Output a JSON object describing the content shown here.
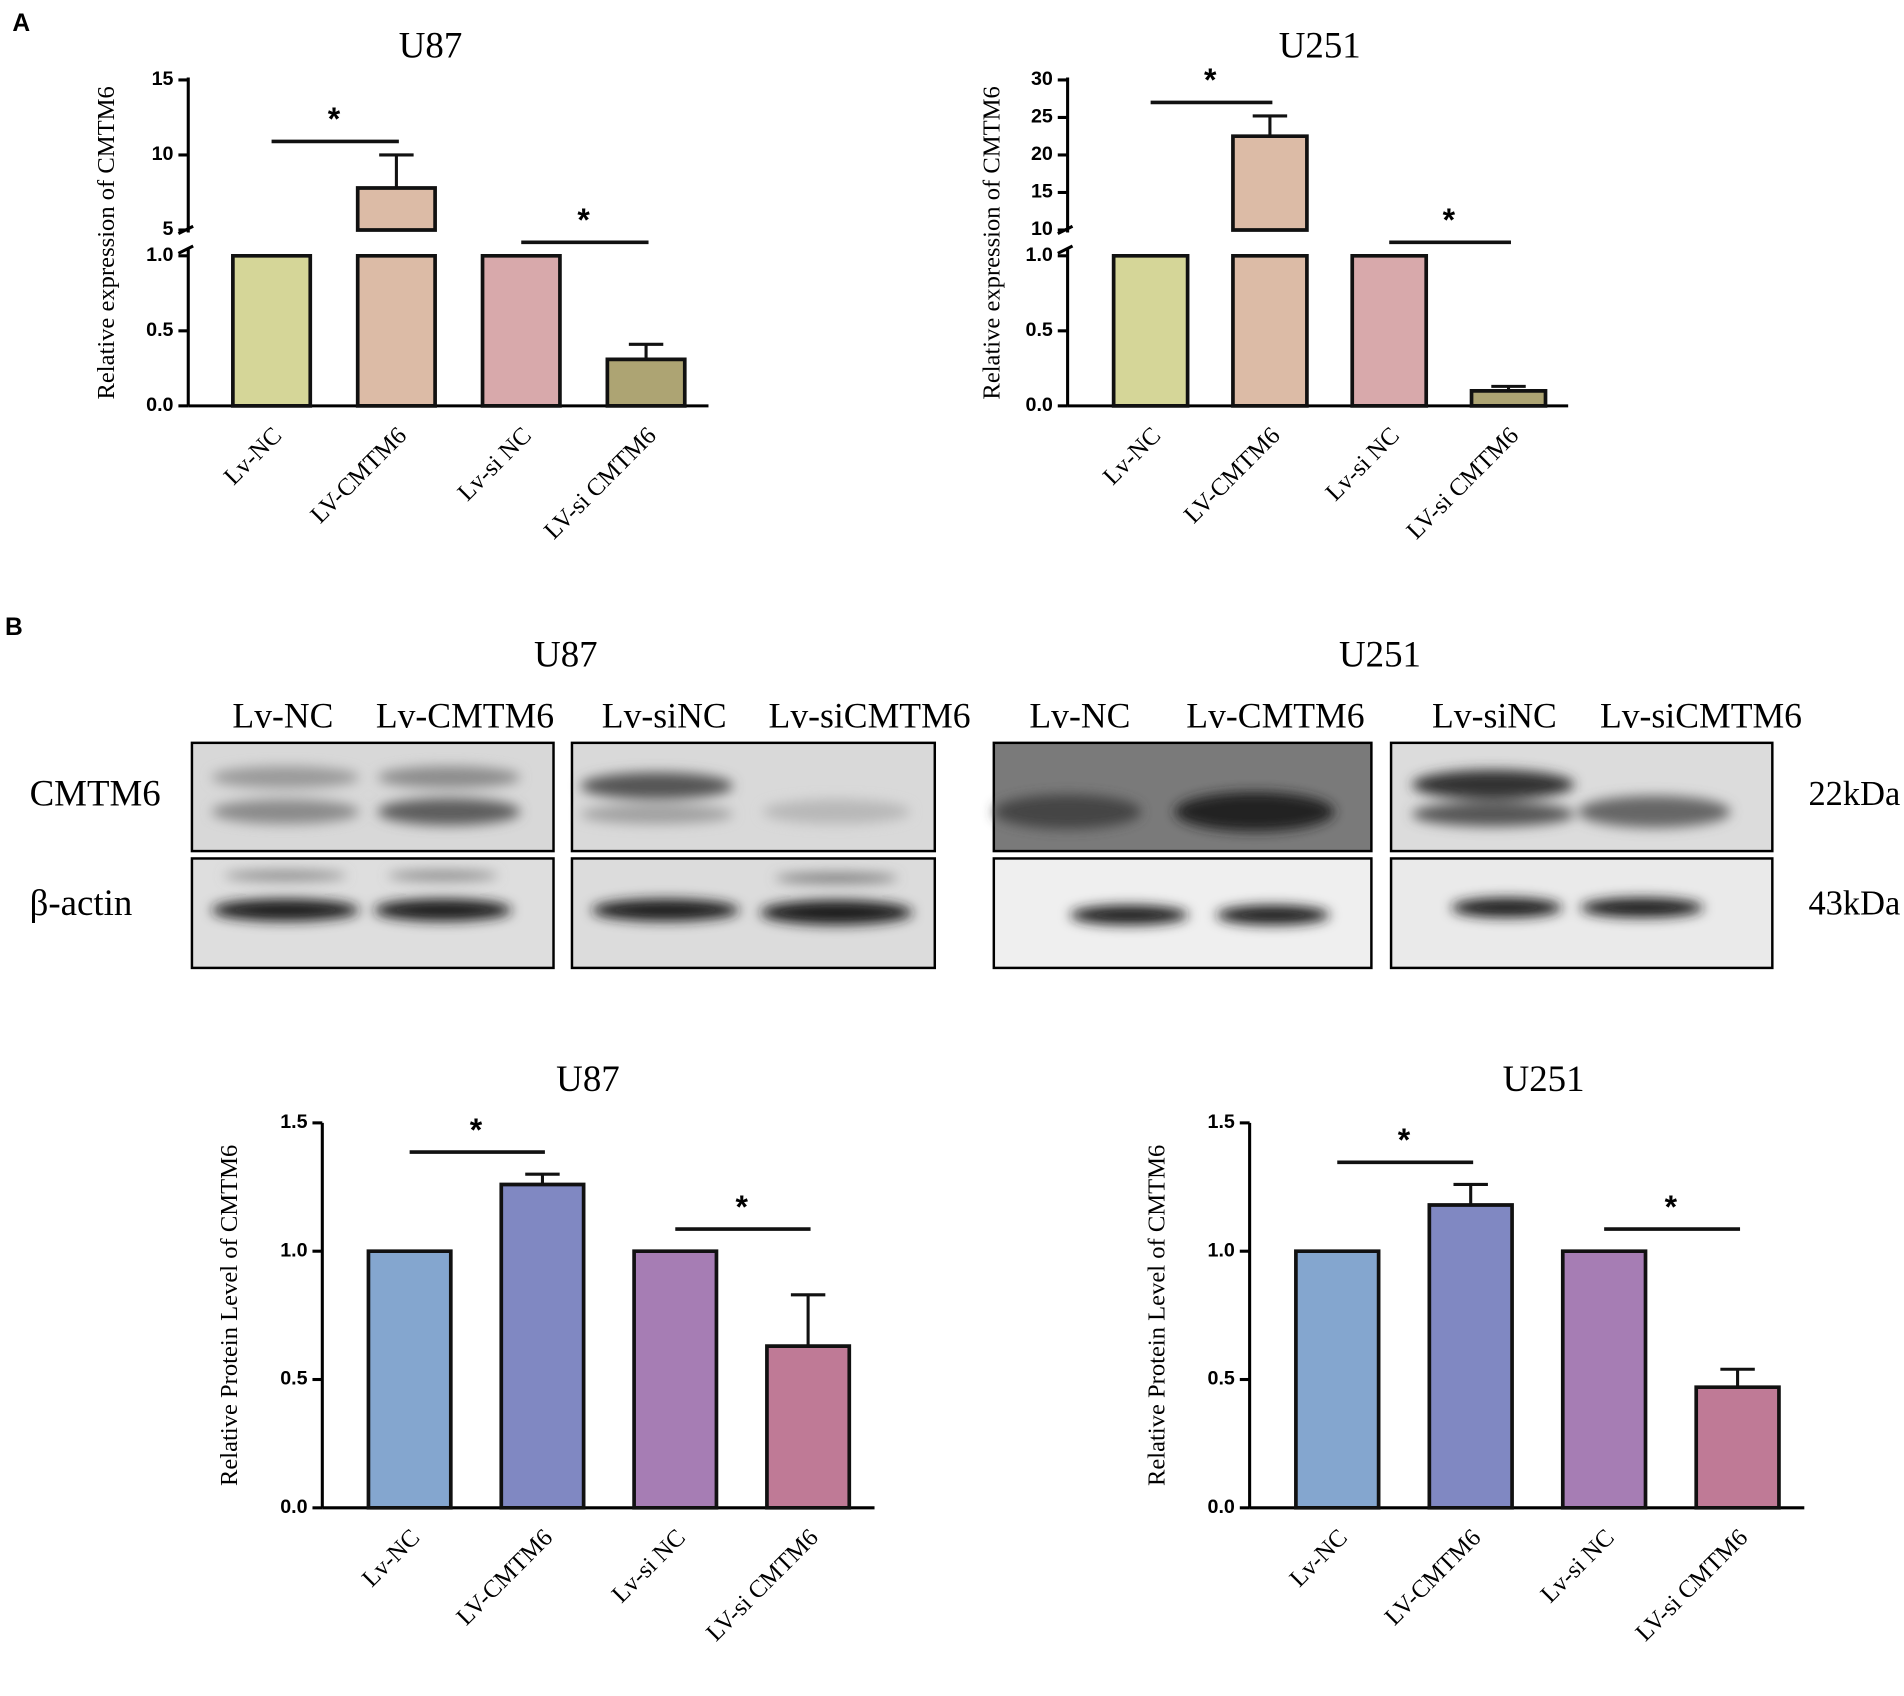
{
  "panels": [
    "A",
    "B"
  ],
  "chart_data": [
    {
      "type": "bar",
      "title": "U87",
      "y_label": "Relative expression of CMTM6",
      "categories": [
        "Lv-NC",
        "LV-CMTM6",
        "Lv-si NC",
        "LV-si CMTM6"
      ],
      "values": [
        1,
        7.8,
        1,
        0.31
      ],
      "errors": [
        null,
        2.2,
        null,
        0.1
      ],
      "colors": [
        "#d5d698",
        "#dcbba6",
        "#d8a9ab",
        "#ada473"
      ],
      "ylim": [
        0,
        15
      ],
      "axis_break": [
        1,
        5
      ],
      "yticks": [
        {
          "value": 0,
          "label": "0.0"
        },
        0.5,
        {
          "value": 1,
          "label": "1.0"
        },
        5,
        10,
        15
      ],
      "significance": [
        {
          "pair": [
            0,
            1
          ],
          "label": "*"
        },
        {
          "pair": [
            2,
            3
          ],
          "label": "*"
        }
      ]
    },
    {
      "type": "bar",
      "title": "U251",
      "y_label": "Relative expression of CMTM6",
      "categories": [
        "Lv-NC",
        "LV-CMTM6",
        "Lv-si NC",
        "LV-si CMTM6"
      ],
      "values": [
        1,
        22.5,
        1,
        0.1
      ],
      "errors": [
        null,
        2.7,
        null,
        0.03
      ],
      "colors": [
        "#d5d698",
        "#dcbba6",
        "#d8a9ab",
        "#ada473"
      ],
      "ylim": [
        0,
        30
      ],
      "axis_break": [
        1,
        10
      ],
      "yticks": [
        {
          "value": 0,
          "label": "0.0"
        },
        0.5,
        {
          "value": 1,
          "label": "1.0"
        },
        10,
        15,
        20,
        25,
        30
      ],
      "significance": [
        {
          "pair": [
            0,
            1
          ],
          "label": "*"
        },
        {
          "pair": [
            2,
            3
          ],
          "label": "*"
        }
      ]
    },
    {
      "type": "bar",
      "title": "U87",
      "y_label": "Relative Protein Level of CMTM6",
      "categories": [
        "Lv-NC",
        "LV-CMTM6",
        "Lv-si NC",
        "LV-si CMTM6"
      ],
      "values": [
        1,
        1.26,
        1,
        0.63
      ],
      "errors": [
        null,
        0.04,
        null,
        0.2
      ],
      "colors": [
        "#84a6cf",
        "#8088c2",
        "#a67db4",
        "#bf7a96"
      ],
      "ylim": [
        0,
        1.5
      ],
      "yticks": [
        {
          "value": 0,
          "label": "0.0"
        },
        0.5,
        {
          "value": 1,
          "label": "1.0"
        },
        1.5
      ],
      "significance": [
        {
          "pair": [
            0,
            1
          ],
          "label": "*"
        },
        {
          "pair": [
            2,
            3
          ],
          "label": "*"
        }
      ]
    },
    {
      "type": "bar",
      "title": "U251",
      "y_label": "Relative Protein Level of CMTM6",
      "categories": [
        "Lv-NC",
        "LV-CMTM6",
        "Lv-si NC",
        "LV-si CMTM6"
      ],
      "values": [
        1,
        1.18,
        1,
        0.47
      ],
      "errors": [
        null,
        0.08,
        null,
        0.07
      ],
      "colors": [
        "#84a6cf",
        "#8088c2",
        "#a67db4",
        "#bf7a96"
      ],
      "ylim": [
        0,
        1.5
      ],
      "yticks": [
        {
          "value": 0,
          "label": "0.0"
        },
        0.5,
        {
          "value": 1,
          "label": "1.0"
        },
        1.5
      ],
      "significance": [
        {
          "pair": [
            0,
            1
          ],
          "label": "*"
        },
        {
          "pair": [
            2,
            3
          ],
          "label": "*"
        }
      ]
    }
  ],
  "blots": [
    {
      "title": "U87",
      "lanes": [
        "Lv-NC",
        "Lv-CMTM6",
        "Lv-siNC",
        "Lv-siCMTM6"
      ]
    },
    {
      "title": "U251",
      "lanes": [
        "Lv-NC",
        "Lv-CMTM6",
        "Lv-siNC",
        "Lv-siCMTM6"
      ]
    }
  ],
  "blot_rows": [
    "CMTM6",
    "β-actin"
  ],
  "blot_sizes": [
    "22kDa",
    "43kDa"
  ]
}
